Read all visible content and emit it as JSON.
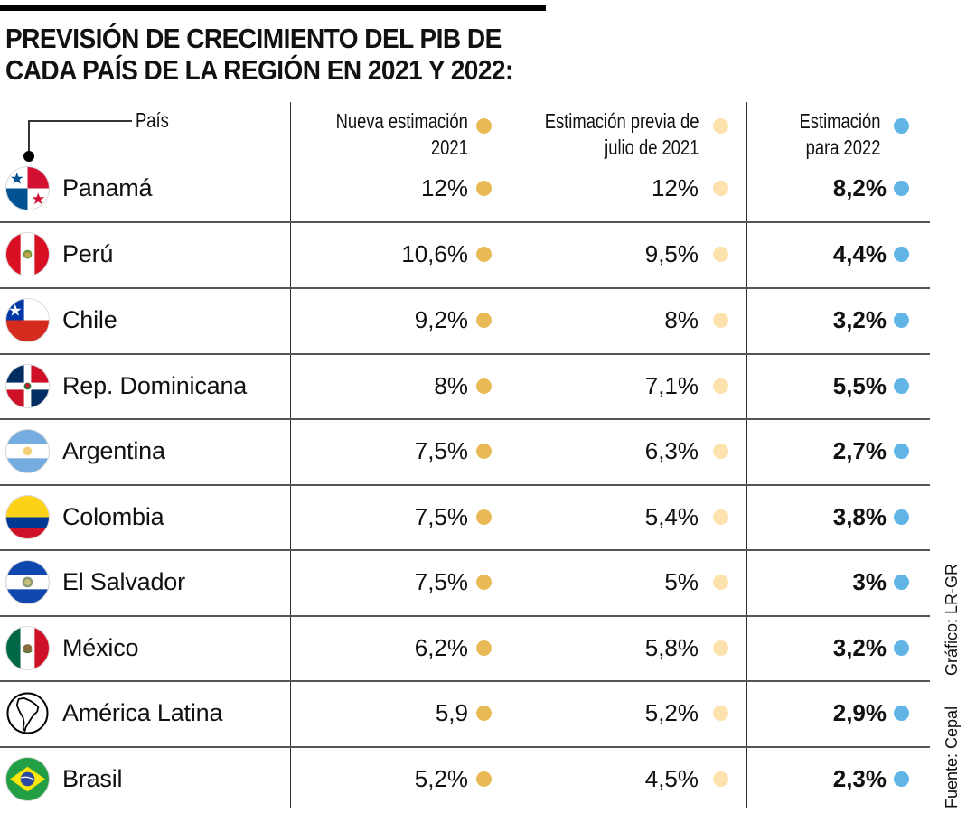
{
  "title": {
    "line1": "PREVISIÓN DE CRECIMIENTO DEL PIB DE",
    "line2": "CADA PAÍS DE LA REGIÓN EN 2021 Y 2022:"
  },
  "headers": {
    "country": "País",
    "col1": [
      "Nueva estimación",
      "2021"
    ],
    "col2": [
      "Estimación previa de",
      "julio de 2021"
    ],
    "col3": [
      "Estimación",
      "para 2022"
    ]
  },
  "colors": {
    "col1_dot": "#E8BA55",
    "col2_dot": "#FDE2AE",
    "col3_dot": "#60B4E6",
    "text": "#111111",
    "rule": "#555555"
  },
  "rows": [
    {
      "country": "Panamá",
      "flag": "panama-flag-icon",
      "new_2021": "12%",
      "prev_jul_2021": "12%",
      "est_2022": "8,2%"
    },
    {
      "country": "Perú",
      "flag": "peru-flag-icon",
      "new_2021": "10,6%",
      "prev_jul_2021": "9,5%",
      "est_2022": "4,4%"
    },
    {
      "country": "Chile",
      "flag": "chile-flag-icon",
      "new_2021": "9,2%",
      "prev_jul_2021": "8%",
      "est_2022": "3,2%"
    },
    {
      "country": "Rep. Dominicana",
      "flag": "dominican-republic-flag-icon",
      "new_2021": "8%",
      "prev_jul_2021": "7,1%",
      "est_2022": "5,5%"
    },
    {
      "country": "Argentina",
      "flag": "argentina-flag-icon",
      "new_2021": "7,5%",
      "prev_jul_2021": "6,3%",
      "est_2022": "2,7%"
    },
    {
      "country": "Colombia",
      "flag": "colombia-flag-icon",
      "new_2021": "7,5%",
      "prev_jul_2021": "5,4%",
      "est_2022": "3,8%"
    },
    {
      "country": "El Salvador",
      "flag": "el-salvador-flag-icon",
      "new_2021": "7,5%",
      "prev_jul_2021": "5%",
      "est_2022": "3%"
    },
    {
      "country": "México",
      "flag": "mexico-flag-icon",
      "new_2021": "6,2%",
      "prev_jul_2021": "5,8%",
      "est_2022": "3,2%"
    },
    {
      "country": "América Latina",
      "flag": "south-america-map-icon",
      "new_2021": "5,9",
      "prev_jul_2021": "5,2%",
      "est_2022": "2,9%"
    },
    {
      "country": "Brasil",
      "flag": "brazil-flag-icon",
      "new_2021": "5,2%",
      "prev_jul_2021": "4,5%",
      "est_2022": "2,3%"
    }
  ],
  "credits": {
    "graphic": "Gráfico: LR-GR",
    "source": "Fuente: Cepal"
  }
}
